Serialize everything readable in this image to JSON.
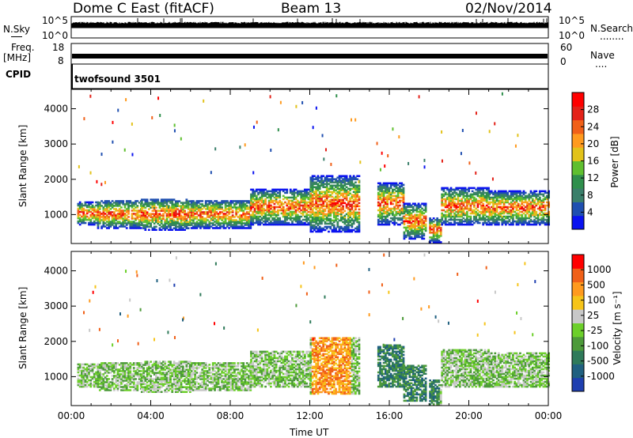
{
  "header": {
    "station": "Dome C East (fitACF)",
    "beam": "Beam 13",
    "date": "02/Nov/2014"
  },
  "strip": {
    "nsky_label": "N.Sky",
    "nsky_ticks": [
      "10^5",
      "10^0"
    ],
    "freq_label": "Freq.",
    "freq_unit": "[MHz]",
    "freq_ticks": [
      "18",
      "8"
    ],
    "cpid_label": "CPID",
    "cpid_value": "twofsound 3501",
    "nsearch_label": "N.Search",
    "nsearch_ticks": [
      "10^5",
      "10^0"
    ],
    "nave_label": "Nave",
    "nave_ticks": [
      "60",
      "0"
    ],
    "dotted_marker": "........",
    "dotted_marker2": "....",
    "nsky_level": 0.45,
    "freq_level": 0.22
  },
  "chart_data": [
    {
      "type": "heatmap",
      "name": "power",
      "ylabel": "Slant Range [km]",
      "xlabel": "",
      "ylim": [
        180,
        4550
      ],
      "yticks": [
        1000,
        2000,
        3000,
        4000
      ],
      "xlim": [
        0,
        24
      ],
      "colorbar": {
        "label": "Power [dB]",
        "ticks": [
          "4",
          "8",
          "12",
          "16",
          "20",
          "24",
          "28"
        ],
        "colors": [
          "#0a12f0",
          "#1f4fb0",
          "#3a7f6a",
          "#2f8f4c",
          "#5fbf2f",
          "#e2c21a",
          "#ff9a1e",
          "#f06018",
          "#e32219",
          "#ff0000"
        ]
      },
      "scatter_density": "sparse above 2200 km, dense 400-1800 km"
    },
    {
      "type": "heatmap",
      "name": "velocity",
      "ylabel": "Slant Range [km]",
      "xlabel": "Time UT",
      "ylim": [
        180,
        4550
      ],
      "yticks": [
        1000,
        2000,
        3000,
        4000
      ],
      "xlim": [
        0,
        24
      ],
      "xticks": [
        "00:00",
        "04:00",
        "08:00",
        "12:00",
        "16:00",
        "20:00",
        "00:00"
      ],
      "colorbar": {
        "label": "Velocity [m s⁻¹]",
        "ticks": [
          "1000",
          "500",
          "100",
          "25",
          "-25",
          "-100",
          "-500",
          "-1000"
        ],
        "colors": [
          "#1f3fb0",
          "#206080",
          "#2f7a5a",
          "#4d9a3a",
          "#6ccf2a",
          "#c8c8c8",
          "#f6c419",
          "#ff9a1e",
          "#f06018",
          "#ff0000"
        ]
      }
    }
  ],
  "echo_bands": [
    {
      "t0": 0.3,
      "t1": 1.3,
      "r0": 700,
      "r1": 1350
    },
    {
      "t0": 1.3,
      "t1": 3.5,
      "r0": 600,
      "r1": 1400
    },
    {
      "t0": 3.5,
      "t1": 6.0,
      "r0": 550,
      "r1": 1450
    },
    {
      "t0": 6.0,
      "t1": 9.0,
      "r0": 600,
      "r1": 1400
    },
    {
      "t0": 9.0,
      "t1": 12.0,
      "r0": 700,
      "r1": 1700
    },
    {
      "t0": 12.0,
      "t1": 14.5,
      "r0": 500,
      "r1": 2100
    },
    {
      "t0": 15.4,
      "t1": 16.7,
      "r0": 700,
      "r1": 1900
    },
    {
      "t0": 16.7,
      "t1": 17.8,
      "r0": 300,
      "r1": 1300
    },
    {
      "t0": 18.0,
      "t1": 18.6,
      "r0": 200,
      "r1": 900
    },
    {
      "t0": 18.6,
      "t1": 21.0,
      "r0": 700,
      "r1": 1750
    },
    {
      "t0": 21.0,
      "t1": 24.0,
      "r0": 700,
      "r1": 1650
    }
  ]
}
